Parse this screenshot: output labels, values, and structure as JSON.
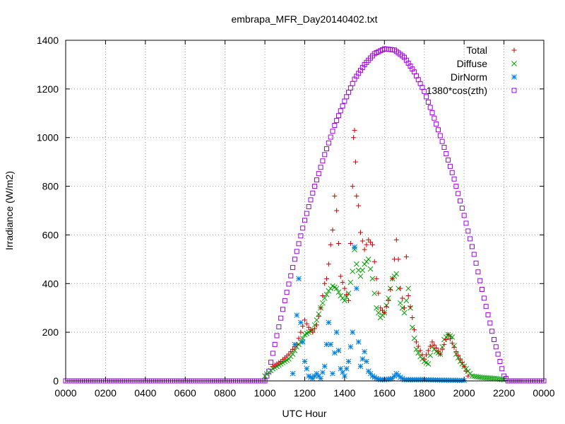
{
  "chart_data": {
    "type": "scatter",
    "title": "embrapa_MFR_Day20140402.txt",
    "xlabel": "UTC Hour",
    "ylabel": "Irradiance (W/m2)",
    "xlim": [
      0,
      2400
    ],
    "ylim": [
      0,
      1400
    ],
    "x_ticks": [
      "0000",
      "0200",
      "0400",
      "0600",
      "0800",
      "1000",
      "1200",
      "1400",
      "1600",
      "1800",
      "2000",
      "2200",
      "0000"
    ],
    "y_ticks": [
      "0",
      "200",
      "400",
      "600",
      "800",
      "1000",
      "1200",
      "1400"
    ],
    "grid": true,
    "legend_position": "top-right",
    "series": [
      {
        "name": "Total",
        "marker": "plus",
        "color": "#d00000",
        "points": [
          [
            1040,
            60
          ],
          [
            1080,
            80
          ],
          [
            1120,
            110
          ],
          [
            1160,
            150
          ],
          [
            1180,
            200
          ],
          [
            1200,
            250
          ],
          [
            1220,
            220
          ],
          [
            1240,
            200
          ],
          [
            1260,
            230
          ],
          [
            1280,
            300
          ],
          [
            1300,
            400
          ],
          [
            1310,
            420
          ],
          [
            1320,
            480
          ],
          [
            1330,
            560
          ],
          [
            1340,
            620
          ],
          [
            1350,
            760
          ],
          [
            1360,
            700
          ],
          [
            1380,
            430
          ],
          [
            1400,
            380
          ],
          [
            1420,
            330
          ],
          [
            1440,
            800
          ],
          [
            1445,
            1000
          ],
          [
            1450,
            1030
          ],
          [
            1455,
            900
          ],
          [
            1460,
            760
          ],
          [
            1470,
            720
          ],
          [
            1480,
            610
          ],
          [
            1500,
            540
          ],
          [
            1520,
            580
          ],
          [
            1540,
            560
          ],
          [
            1560,
            420
          ],
          [
            1580,
            300
          ],
          [
            1600,
            280
          ],
          [
            1620,
            330
          ],
          [
            1640,
            420
          ],
          [
            1660,
            580
          ],
          [
            1670,
            500
          ],
          [
            1680,
            380
          ],
          [
            1700,
            300
          ],
          [
            1710,
            510
          ],
          [
            1720,
            350
          ],
          [
            1740,
            260
          ],
          [
            1760,
            160
          ],
          [
            1800,
            90
          ],
          [
            1840,
            160
          ],
          [
            1880,
            110
          ],
          [
            1920,
            190
          ],
          [
            1960,
            120
          ],
          [
            2000,
            60
          ],
          [
            2020,
            20
          ]
        ]
      },
      {
        "name": "Diffuse",
        "marker": "cross",
        "color": "#00a000",
        "points": [
          [
            1000,
            20
          ],
          [
            1040,
            50
          ],
          [
            1080,
            70
          ],
          [
            1120,
            90
          ],
          [
            1140,
            110
          ],
          [
            1160,
            140
          ],
          [
            1180,
            160
          ],
          [
            1200,
            190
          ],
          [
            1220,
            200
          ],
          [
            1240,
            210
          ],
          [
            1260,
            250
          ],
          [
            1280,
            300
          ],
          [
            1300,
            340
          ],
          [
            1320,
            370
          ],
          [
            1340,
            390
          ],
          [
            1360,
            380
          ],
          [
            1380,
            350
          ],
          [
            1400,
            330
          ],
          [
            1420,
            360
          ],
          [
            1440,
            450
          ],
          [
            1450,
            540
          ],
          [
            1460,
            480
          ],
          [
            1480,
            430
          ],
          [
            1500,
            480
          ],
          [
            1520,
            500
          ],
          [
            1540,
            420
          ],
          [
            1560,
            300
          ],
          [
            1580,
            260
          ],
          [
            1600,
            280
          ],
          [
            1620,
            340
          ],
          [
            1640,
            420
          ],
          [
            1660,
            440
          ],
          [
            1680,
            320
          ],
          [
            1700,
            280
          ],
          [
            1720,
            380
          ],
          [
            1740,
            220
          ],
          [
            1760,
            130
          ],
          [
            1780,
            100
          ],
          [
            1800,
            80
          ],
          [
            1820,
            70
          ],
          [
            1840,
            140
          ],
          [
            1860,
            120
          ],
          [
            1880,
            110
          ],
          [
            1900,
            170
          ],
          [
            1920,
            190
          ],
          [
            1940,
            180
          ],
          [
            1960,
            110
          ],
          [
            1980,
            80
          ],
          [
            2000,
            60
          ],
          [
            2020,
            40
          ],
          [
            2040,
            20
          ],
          [
            2080,
            15
          ],
          [
            2120,
            12
          ],
          [
            2160,
            10
          ],
          [
            2200,
            5
          ]
        ]
      },
      {
        "name": "DirNorm",
        "marker": "star",
        "color": "#0080e0",
        "points": [
          [
            1140,
            30
          ],
          [
            1160,
            270
          ],
          [
            1170,
            420
          ],
          [
            1180,
            240
          ],
          [
            1200,
            80
          ],
          [
            1220,
            20
          ],
          [
            1240,
            10
          ],
          [
            1260,
            30
          ],
          [
            1280,
            10
          ],
          [
            1300,
            60
          ],
          [
            1320,
            240
          ],
          [
            1330,
            150
          ],
          [
            1340,
            30
          ],
          [
            1360,
            200
          ],
          [
            1380,
            50
          ],
          [
            1400,
            20
          ],
          [
            1420,
            80
          ],
          [
            1440,
            200
          ],
          [
            1450,
            550
          ],
          [
            1460,
            380
          ],
          [
            1470,
            160
          ],
          [
            1480,
            60
          ],
          [
            1500,
            120
          ],
          [
            1520,
            40
          ],
          [
            1540,
            20
          ],
          [
            1560,
            10
          ],
          [
            1580,
            5
          ],
          [
            1600,
            5
          ],
          [
            1640,
            10
          ],
          [
            1660,
            30
          ],
          [
            1680,
            15
          ],
          [
            1700,
            5
          ],
          [
            1720,
            5
          ],
          [
            1760,
            5
          ],
          [
            1800,
            5
          ],
          [
            1900,
            3
          ],
          [
            2000,
            2
          ]
        ]
      },
      {
        "name": "1380*cos(zth)",
        "marker": "square",
        "color": "#a000e0",
        "points": [
          [
            0,
            0
          ],
          [
            200,
            0
          ],
          [
            400,
            0
          ],
          [
            600,
            0
          ],
          [
            800,
            0
          ],
          [
            1000,
            0
          ],
          [
            1020,
            40
          ],
          [
            1050,
            150
          ],
          [
            1100,
            330
          ],
          [
            1150,
            500
          ],
          [
            1200,
            660
          ],
          [
            1250,
            800
          ],
          [
            1300,
            930
          ],
          [
            1350,
            1050
          ],
          [
            1400,
            1150
          ],
          [
            1450,
            1240
          ],
          [
            1500,
            1300
          ],
          [
            1550,
            1345
          ],
          [
            1600,
            1365
          ],
          [
            1650,
            1360
          ],
          [
            1700,
            1330
          ],
          [
            1750,
            1270
          ],
          [
            1800,
            1190
          ],
          [
            1850,
            1080
          ],
          [
            1900,
            960
          ],
          [
            1950,
            830
          ],
          [
            2000,
            680
          ],
          [
            2050,
            520
          ],
          [
            2100,
            340
          ],
          [
            2150,
            170
          ],
          [
            2200,
            20
          ],
          [
            2220,
            0
          ],
          [
            2300,
            0
          ],
          [
            2400,
            0
          ]
        ]
      }
    ]
  }
}
